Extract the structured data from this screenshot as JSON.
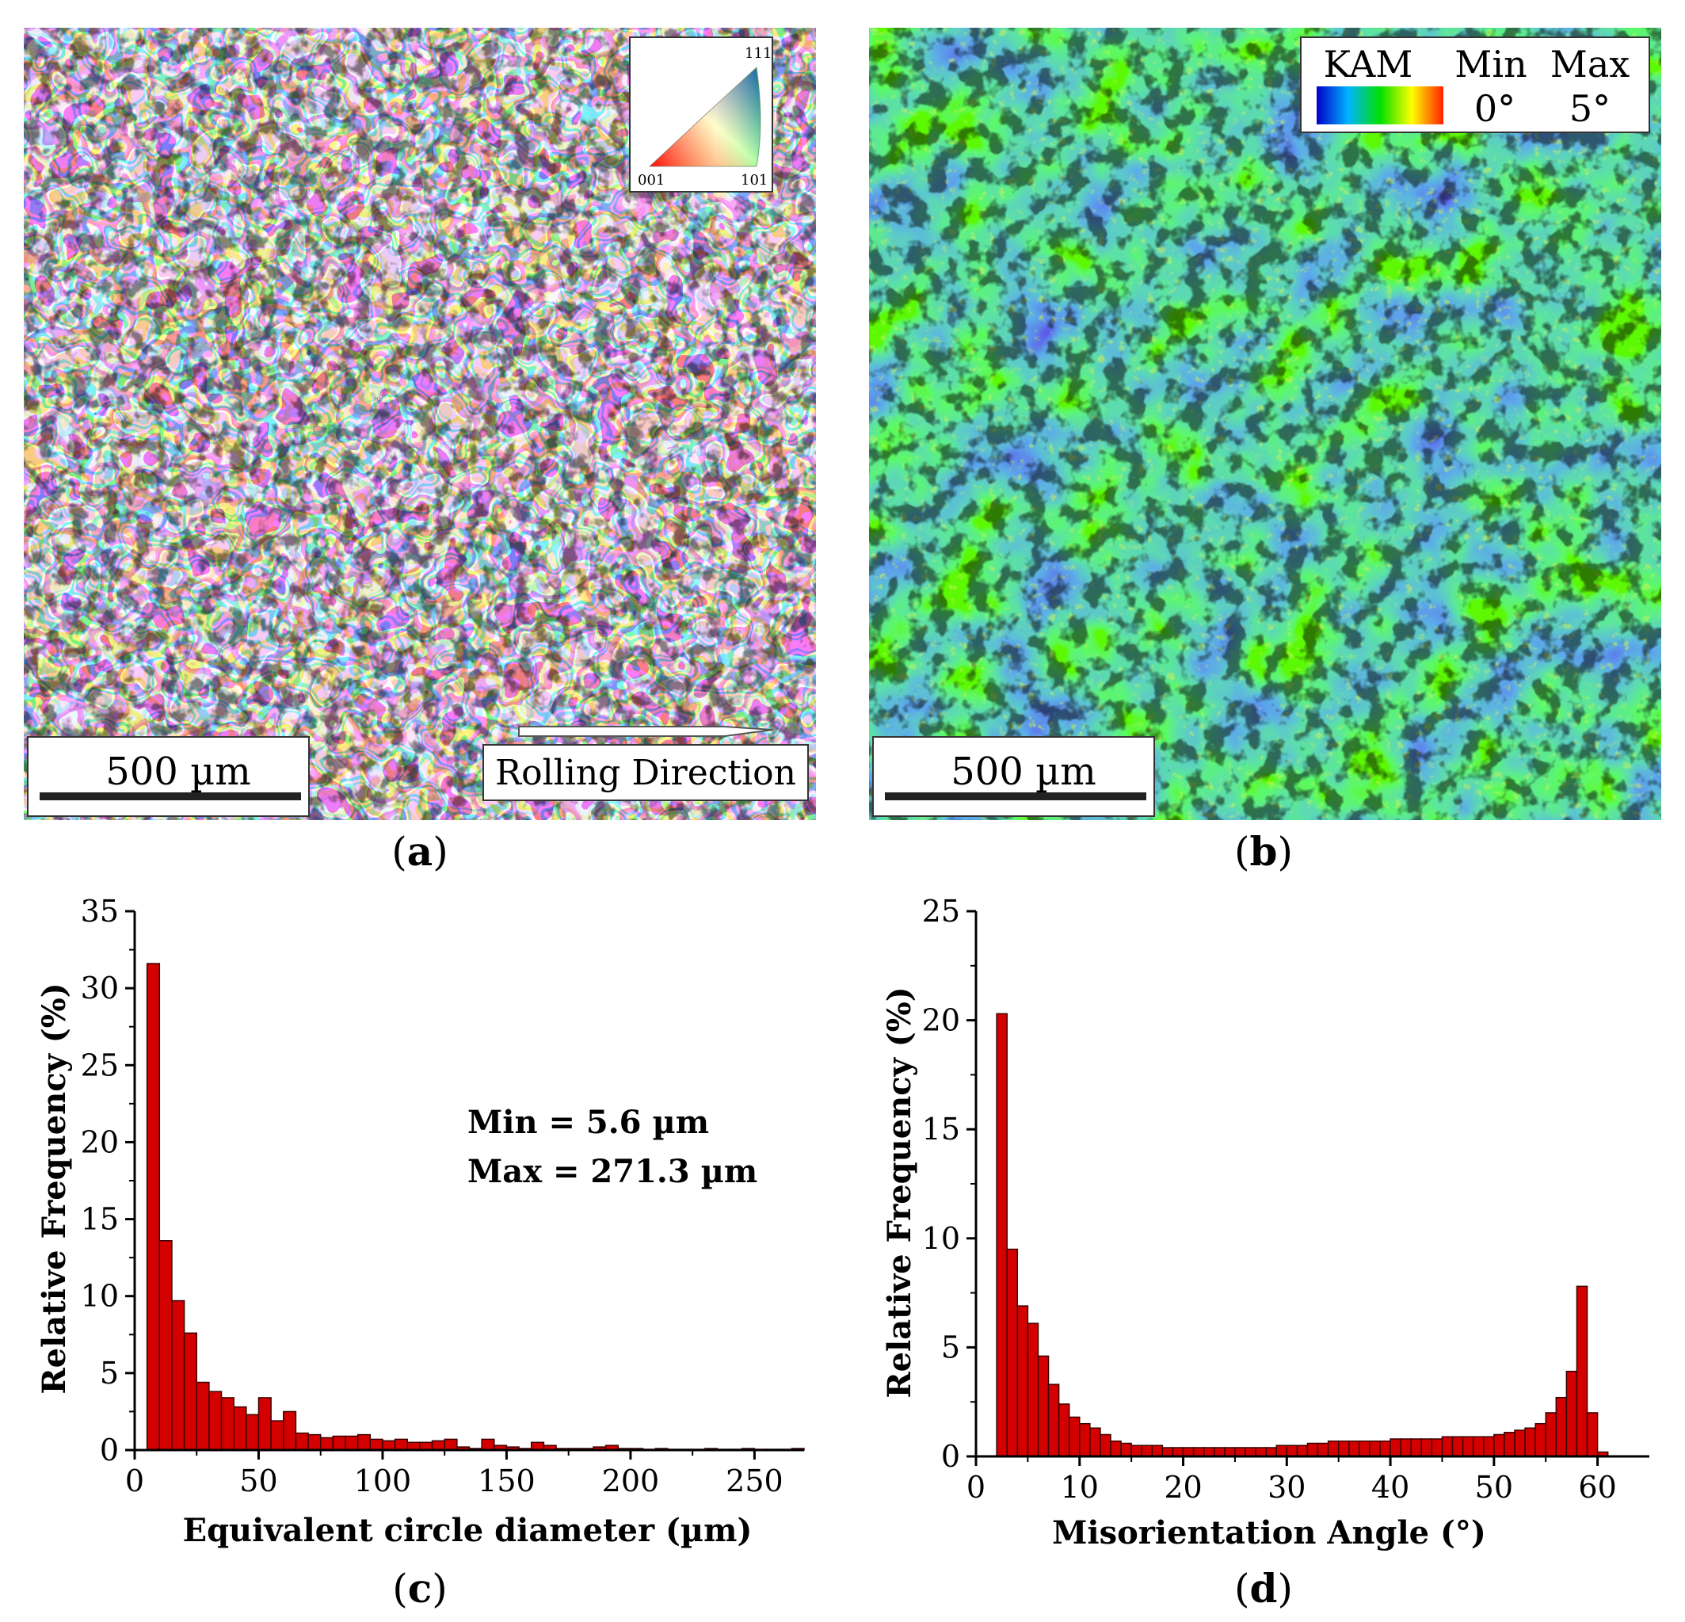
{
  "panels": {
    "a": {
      "caption": "a",
      "scale_bar_label": "500 µm",
      "direction_label": "Rolling Direction",
      "ipf_labels": {
        "top": "111",
        "left": "001",
        "right": "101"
      }
    },
    "b": {
      "caption": "b",
      "scale_bar_label": "500 µm",
      "legend": {
        "title": "KAM",
        "min_label": "Min",
        "max_label": "Max",
        "min_value": "0°",
        "max_value": "5°"
      }
    },
    "c": {
      "caption": "c"
    },
    "d": {
      "caption": "d"
    }
  },
  "colors": {
    "bar_fill": "#d40000",
    "bar_stroke": "#3a0000",
    "kam_green": "#3fbf1f",
    "kam_blue": "#1e4fd0"
  },
  "chart_data": [
    {
      "id": "c",
      "type": "bar",
      "xlabel": "Equivalent circle diameter (µm)",
      "ylabel": "Relative Frequency (%)",
      "xlim": [
        0,
        270
      ],
      "ylim": [
        0,
        35
      ],
      "xticks": [
        0,
        50,
        100,
        150,
        200,
        250
      ],
      "yticks": [
        0,
        5,
        10,
        15,
        20,
        25,
        30,
        35
      ],
      "bin_width": 5,
      "annotations": [
        "Min = 5.6 µm",
        "Max = 271.3 µm"
      ],
      "x": [
        7.5,
        12.5,
        17.5,
        22.5,
        27.5,
        32.5,
        37.5,
        42.5,
        47.5,
        52.5,
        57.5,
        62.5,
        67.5,
        72.5,
        77.5,
        82.5,
        87.5,
        92.5,
        97.5,
        102.5,
        107.5,
        112.5,
        117.5,
        122.5,
        127.5,
        132.5,
        137.5,
        142.5,
        147.5,
        152.5,
        157.5,
        162.5,
        167.5,
        172.5,
        177.5,
        182.5,
        187.5,
        192.5,
        197.5,
        202.5,
        207.5,
        212.5,
        217.5,
        222.5,
        227.5,
        232.5,
        237.5,
        242.5,
        247.5,
        252.5,
        257.5,
        262.5,
        267.5
      ],
      "values": [
        31.6,
        13.6,
        9.7,
        7.6,
        4.4,
        3.8,
        3.4,
        2.8,
        2.3,
        3.4,
        1.9,
        2.5,
        1.1,
        1.0,
        0.8,
        0.9,
        0.9,
        1.0,
        0.7,
        0.6,
        0.7,
        0.5,
        0.5,
        0.6,
        0.7,
        0.2,
        0.1,
        0.7,
        0.3,
        0.2,
        0.1,
        0.5,
        0.3,
        0.1,
        0.1,
        0.1,
        0.2,
        0.3,
        0.1,
        0.1,
        0.05,
        0.1,
        0.05,
        0.05,
        0.05,
        0.1,
        0.05,
        0.05,
        0.1,
        0.05,
        0.05,
        0.05,
        0.1
      ]
    },
    {
      "id": "d",
      "type": "bar",
      "xlabel": "Misorientation Angle (°)",
      "ylabel": "Relative Frequency (%)",
      "xlim": [
        0,
        65
      ],
      "ylim": [
        0,
        25
      ],
      "xticks": [
        0,
        10,
        20,
        30,
        40,
        50,
        60
      ],
      "yticks": [
        0,
        5,
        10,
        15,
        20,
        25
      ],
      "bin_width": 1,
      "x": [
        2.5,
        3.5,
        4.5,
        5.5,
        6.5,
        7.5,
        8.5,
        9.5,
        10.5,
        11.5,
        12.5,
        13.5,
        14.5,
        15.5,
        16.5,
        17.5,
        18.5,
        19.5,
        20.5,
        21.5,
        22.5,
        23.5,
        24.5,
        25.5,
        26.5,
        27.5,
        28.5,
        29.5,
        30.5,
        31.5,
        32.5,
        33.5,
        34.5,
        35.5,
        36.5,
        37.5,
        38.5,
        39.5,
        40.5,
        41.5,
        42.5,
        43.5,
        44.5,
        45.5,
        46.5,
        47.5,
        48.5,
        49.5,
        50.5,
        51.5,
        52.5,
        53.5,
        54.5,
        55.5,
        56.5,
        57.5,
        58.5,
        59.5,
        60.5,
        61.5
      ],
      "values": [
        20.3,
        9.5,
        6.9,
        6.1,
        4.6,
        3.3,
        2.4,
        1.8,
        1.5,
        1.3,
        1.0,
        0.7,
        0.6,
        0.5,
        0.5,
        0.5,
        0.4,
        0.4,
        0.4,
        0.4,
        0.4,
        0.4,
        0.4,
        0.4,
        0.4,
        0.4,
        0.4,
        0.5,
        0.5,
        0.5,
        0.6,
        0.6,
        0.7,
        0.7,
        0.7,
        0.7,
        0.7,
        0.7,
        0.8,
        0.8,
        0.8,
        0.8,
        0.8,
        0.9,
        0.9,
        0.9,
        0.9,
        0.9,
        1.0,
        1.1,
        1.2,
        1.3,
        1.5,
        2.0,
        2.7,
        3.9,
        7.8,
        2.0,
        0.2,
        0.0
      ]
    }
  ]
}
